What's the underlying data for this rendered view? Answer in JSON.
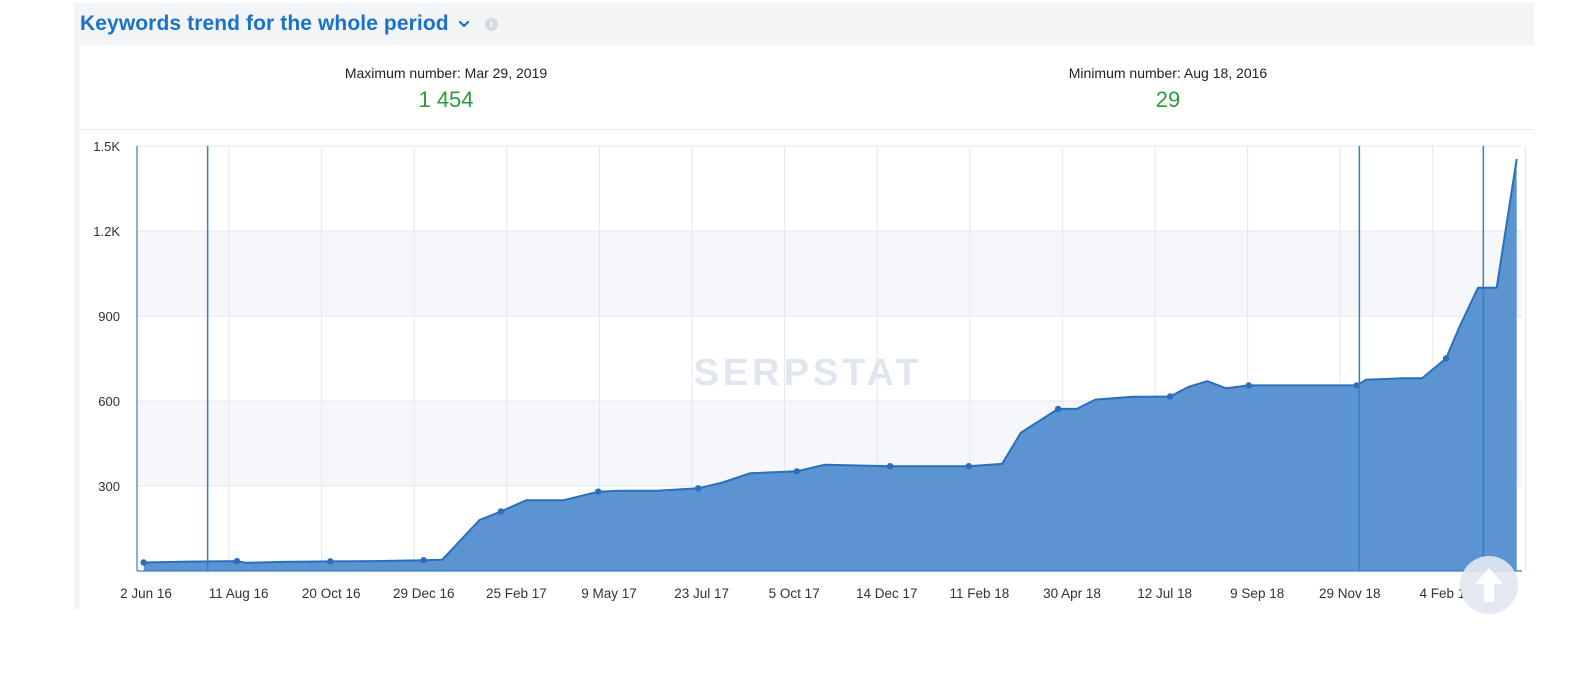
{
  "header": {
    "title": "Keywords trend for the whole period",
    "chevron_icon": "chevron-down-icon",
    "info_icon": "info-icon",
    "info_glyph": "i"
  },
  "stats": {
    "max_label": "Maximum number: Mar 29, 2019",
    "max_value": "1 454",
    "min_label": "Minimum number: Aug 18, 2016",
    "min_value": "29"
  },
  "watermark": "SERPSTAT",
  "colors": {
    "title": "#1a72c9",
    "value": "#2e9b3d",
    "area": "#5b94d0",
    "line": "#2a6fba"
  },
  "chart_data": {
    "type": "area",
    "title": "",
    "xlabel": "",
    "ylabel": "",
    "ylim": [
      0,
      1500
    ],
    "grid": true,
    "y_ticks": [
      "300",
      "600",
      "900",
      "1.2K",
      "1.5K"
    ],
    "x_tick_labels": [
      "2 Jun 16",
      "11 Aug 16",
      "20 Oct 16",
      "29 Dec 16",
      "25 Feb 17",
      "9 May 17",
      "23 Jul 17",
      "5 Oct 17",
      "14 Dec 17",
      "11 Feb 18",
      "30 Apr 18",
      "12 Jul 18",
      "9 Sep 18",
      "29 Nov 18",
      "4 Feb 1"
    ],
    "x": [
      "2016-06-02",
      "2016-07-06",
      "2016-08-11",
      "2016-08-18",
      "2016-09-15",
      "2016-10-20",
      "2016-11-24",
      "2016-12-29",
      "2017-01-12",
      "2017-01-26",
      "2017-02-09",
      "2017-02-25",
      "2017-03-16",
      "2017-04-13",
      "2017-05-09",
      "2017-05-25",
      "2017-06-22",
      "2017-07-23",
      "2017-08-10",
      "2017-08-31",
      "2017-10-05",
      "2017-10-26",
      "2017-12-14",
      "2018-01-18",
      "2018-02-11",
      "2018-03-08",
      "2018-03-22",
      "2018-04-19",
      "2018-05-03",
      "2018-05-17",
      "2018-06-14",
      "2018-07-12",
      "2018-07-26",
      "2018-08-09",
      "2018-08-23",
      "2018-09-09",
      "2018-10-11",
      "2018-11-08",
      "2018-11-29",
      "2018-12-06",
      "2019-01-03",
      "2019-01-17",
      "2019-02-04",
      "2019-02-14",
      "2019-02-28",
      "2019-03-14",
      "2019-03-29"
    ],
    "series": [
      {
        "values": [
          30,
          33,
          35,
          29,
          32,
          34,
          35,
          38,
          40,
          110,
          180,
          210,
          250,
          250,
          280,
          283,
          283,
          292,
          312,
          345,
          352,
          375,
          370,
          370,
          370,
          378,
          488,
          572,
          572,
          605,
          615,
          616,
          650,
          670,
          645,
          655,
          655,
          655,
          655,
          675,
          680,
          680,
          750,
          860,
          1000,
          1000,
          1454
        ],
        "markers": [
          true,
          false,
          true,
          false,
          false,
          true,
          false,
          true,
          false,
          false,
          false,
          true,
          false,
          false,
          true,
          false,
          false,
          true,
          false,
          false,
          true,
          false,
          true,
          false,
          true,
          false,
          false,
          true,
          false,
          false,
          false,
          true,
          false,
          false,
          false,
          true,
          false,
          false,
          true,
          false,
          false,
          false,
          true,
          false,
          false,
          false,
          false
        ]
      }
    ],
    "vertical_lines": [
      "2016-07-20",
      "2018-12-01",
      "2019-03-04"
    ]
  }
}
